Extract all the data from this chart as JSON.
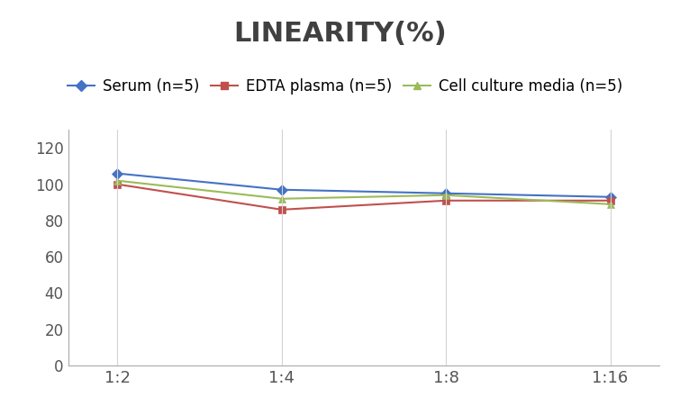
{
  "title": "LINEARITY(%)",
  "title_fontsize": 22,
  "title_fontweight": "bold",
  "title_color": "#404040",
  "x_labels": [
    "1:2",
    "1:4",
    "1:8",
    "1:16"
  ],
  "series": [
    {
      "name": "Serum (n=5)",
      "values": [
        106,
        97,
        95,
        93
      ],
      "color": "#4472C4",
      "marker": "D",
      "markersize": 6
    },
    {
      "name": "EDTA plasma (n=5)",
      "values": [
        100,
        86,
        91,
        91
      ],
      "color": "#C0504D",
      "marker": "s",
      "markersize": 6
    },
    {
      "name": "Cell culture media (n=5)",
      "values": [
        102,
        92,
        94,
        89
      ],
      "color": "#9BBB59",
      "marker": "^",
      "markersize": 6
    }
  ],
  "ylim": [
    0,
    130
  ],
  "yticks": [
    0,
    20,
    40,
    60,
    80,
    100,
    120
  ],
  "ytick_fontsize": 12,
  "xtick_fontsize": 13,
  "legend_fontsize": 12,
  "background_color": "#ffffff",
  "grid_color": "#d3d3d3",
  "axis_color": "#aaaaaa",
  "tick_color": "#555555"
}
